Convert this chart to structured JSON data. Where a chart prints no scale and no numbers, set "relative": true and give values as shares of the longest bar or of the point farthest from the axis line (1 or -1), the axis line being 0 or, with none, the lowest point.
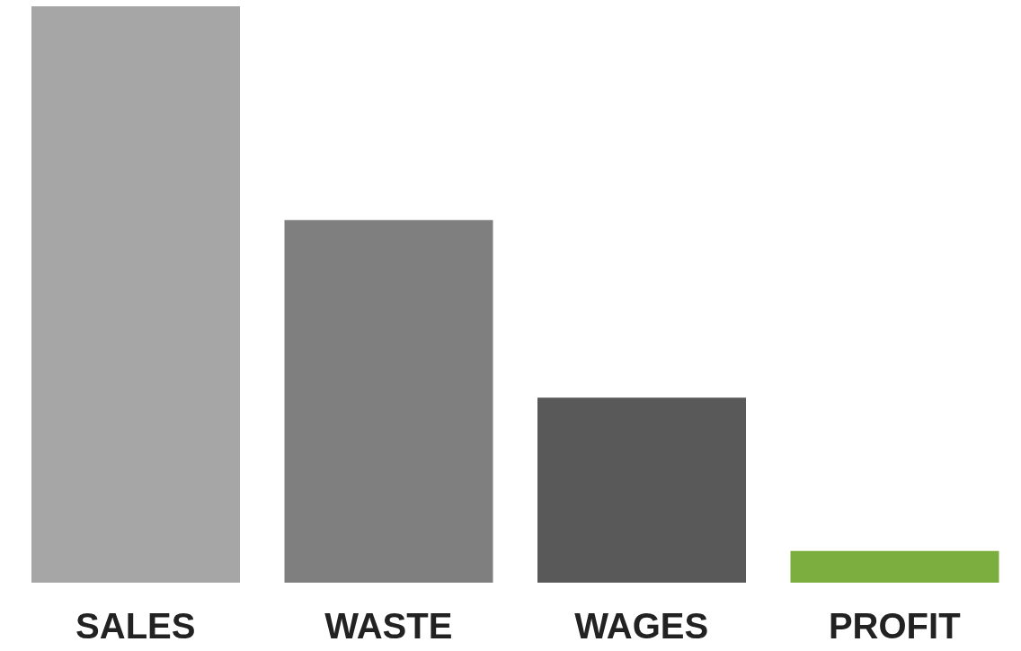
{
  "chart_data": {
    "type": "bar",
    "relative": true,
    "categories": [
      "SALES",
      "WASTE",
      "WAGES",
      "PROFIT"
    ],
    "values": [
      1,
      0.629,
      0.321,
      0.055
    ],
    "colors": [
      "#a6a6a6",
      "#7f7f7f",
      "#595959",
      "#7cae3f"
    ],
    "grid": false,
    "legend": false
  }
}
